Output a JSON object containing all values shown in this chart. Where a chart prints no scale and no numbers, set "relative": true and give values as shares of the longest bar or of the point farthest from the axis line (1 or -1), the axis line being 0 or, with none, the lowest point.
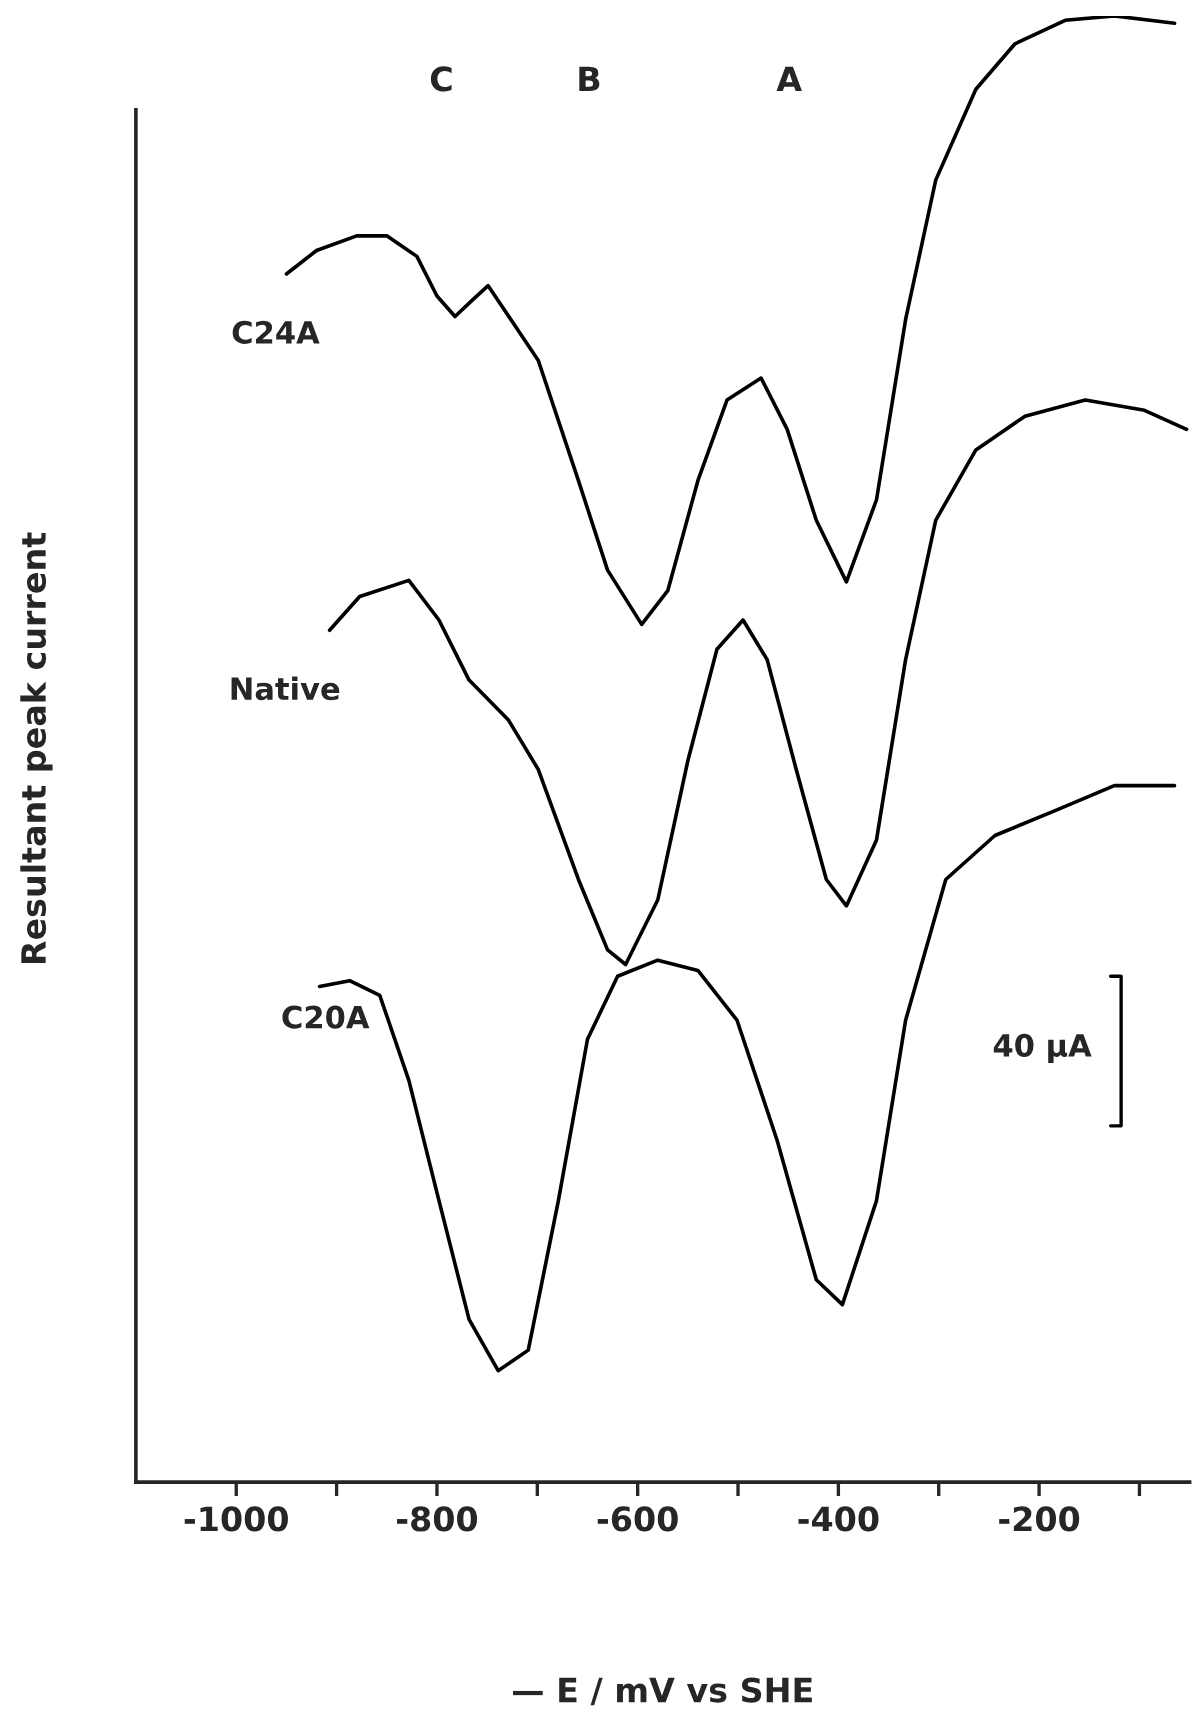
{
  "chart_data": {
    "type": "line",
    "relative": true,
    "xlabel": "— E / mV vs SHE",
    "ylabel": "Resultant peak current",
    "xlim": [
      -1100,
      -50
    ],
    "xticks": [
      {
        "value": -1000,
        "label": "-1000"
      },
      {
        "value": -900,
        "label": null
      },
      {
        "value": -800,
        "label": "-800"
      },
      {
        "value": -700,
        "label": null
      },
      {
        "value": -600,
        "label": "-600"
      },
      {
        "value": -500,
        "label": null
      },
      {
        "value": -400,
        "label": "-400"
      },
      {
        "value": -300,
        "label": null
      },
      {
        "value": -200,
        "label": "-200"
      },
      {
        "value": -100,
        "label": null
      }
    ],
    "grid": false,
    "legend": false,
    "marker": "none",
    "line_style": "solid",
    "annotations": [
      "C",
      "B",
      "A",
      "40 µA"
    ],
    "series": [
      {
        "name": "C24A",
        "color": "#000000",
        "x": [
          -950,
          -920,
          -880,
          -850,
          -820,
          -800,
          -782,
          -765,
          -749,
          -699,
          -659,
          -630,
          -596,
          -570,
          -540,
          -511,
          -477,
          -451,
          -422,
          -392,
          -362,
          -333,
          -303,
          -263,
          -224,
          -174,
          -125,
          -65
        ],
        "values": [
          0.824,
          0.84,
          0.85,
          0.85,
          0.836,
          0.809,
          0.795,
          0.806,
          0.816,
          0.765,
          0.683,
          0.622,
          0.585,
          0.608,
          0.683,
          0.738,
          0.753,
          0.718,
          0.656,
          0.614,
          0.67,
          0.793,
          0.888,
          0.95,
          0.981,
          0.997,
          1.0,
          0.995
        ]
      },
      {
        "name": "Native",
        "color": "#000000",
        "x": [
          -907,
          -877,
          -828,
          -798,
          -768,
          -729,
          -699,
          -659,
          -630,
          -612,
          -580,
          -550,
          -521,
          -495,
          -471,
          -442,
          -412,
          -392,
          -362,
          -333,
          -303,
          -263,
          -214,
          -154,
          -95,
          -53
        ],
        "values": [
          0.581,
          0.604,
          0.615,
          0.588,
          0.547,
          0.52,
          0.486,
          0.411,
          0.363,
          0.353,
          0.397,
          0.492,
          0.568,
          0.588,
          0.561,
          0.486,
          0.411,
          0.393,
          0.438,
          0.561,
          0.656,
          0.704,
          0.727,
          0.738,
          0.731,
          0.718
        ]
      },
      {
        "name": "C20A",
        "color": "#000000",
        "x": [
          -917,
          -887,
          -857,
          -828,
          -798,
          -768,
          -739,
          -709,
          -679,
          -650,
          -620,
          -580,
          -540,
          -501,
          -461,
          -422,
          -396,
          -362,
          -333,
          -293,
          -244,
          -184,
          -125,
          -65
        ],
        "values": [
          0.338,
          0.342,
          0.332,
          0.274,
          0.192,
          0.111,
          0.076,
          0.09,
          0.192,
          0.302,
          0.345,
          0.356,
          0.349,
          0.315,
          0.233,
          0.138,
          0.121,
          0.192,
          0.315,
          0.411,
          0.441,
          0.458,
          0.475,
          0.475
        ]
      }
    ]
  }
}
